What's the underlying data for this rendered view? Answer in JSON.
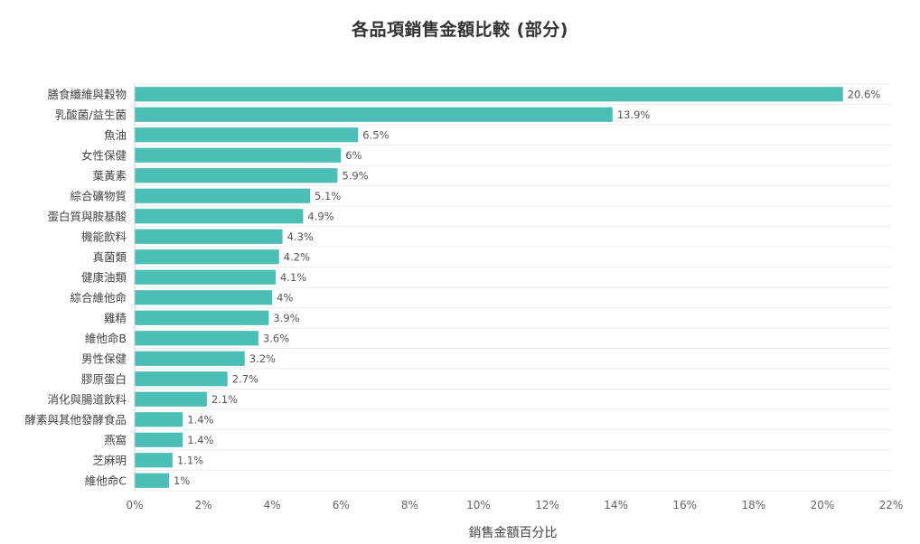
{
  "chart_data": {
    "type": "bar",
    "orientation": "horizontal",
    "title": "各品項銷售金額比較 (部分)",
    "xlabel": "銷售金額百分比",
    "ylabel": "",
    "xlim": [
      0,
      22
    ],
    "x_ticks": [
      "0%",
      "2%",
      "4%",
      "6%",
      "8%",
      "10%",
      "12%",
      "14%",
      "16%",
      "18%",
      "20%",
      "22%"
    ],
    "x_tick_values": [
      0,
      2,
      4,
      6,
      8,
      10,
      12,
      14,
      16,
      18,
      20,
      22
    ],
    "grid": true,
    "bar_color": "#4bbfb6",
    "categories": [
      "膳食纖維與穀物",
      "乳酸菌/益生菌",
      "魚油",
      "女性保健",
      "葉黃素",
      "綜合礦物質",
      "蛋白質與胺基酸",
      "機能飲料",
      "真菌類",
      "健康油類",
      "綜合維他命",
      "雞精",
      "維他命B",
      "男性保健",
      "膠原蛋白",
      "消化與腸道飲料",
      "酵素與其他發酵食品",
      "燕窩",
      "芝麻明",
      "維他命C"
    ],
    "values": [
      20.6,
      13.9,
      6.5,
      6,
      5.9,
      5.1,
      4.9,
      4.3,
      4.2,
      4.1,
      4,
      3.9,
      3.6,
      3.2,
      2.7,
      2.1,
      1.4,
      1.4,
      1.1,
      1
    ],
    "value_labels": [
      "20.6%",
      "13.9%",
      "6.5%",
      "6%",
      "5.9%",
      "5.1%",
      "4.9%",
      "4.3%",
      "4.2%",
      "4.1%",
      "4%",
      "3.9%",
      "3.6%",
      "3.2%",
      "2.7%",
      "2.1%",
      "1.4%",
      "1.4%",
      "1.1%",
      "1%"
    ]
  }
}
